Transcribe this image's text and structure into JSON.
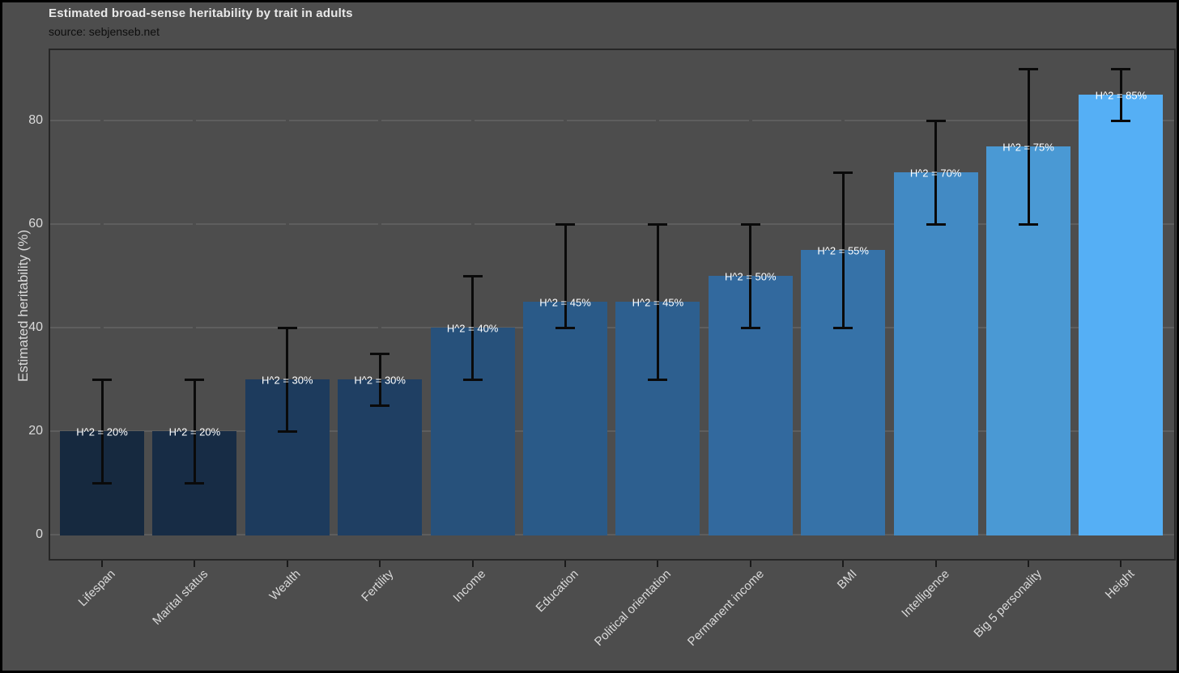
{
  "page": {
    "background_color": "#4d4d4d",
    "border_color": "#000000"
  },
  "header": {
    "title": "Estimated broad-sense heritability by trait in adults",
    "subtitle": "source: sebjenseb.net"
  },
  "chart_data": {
    "type": "bar",
    "title": "Estimated broad-sense heritability by trait in adults",
    "subtitle": "source: sebjenseb.net",
    "xlabel": "",
    "ylabel": "Estimated heritability (%)",
    "ylim": [
      -5,
      95
    ],
    "yticks": [
      0,
      20,
      40,
      60,
      80
    ],
    "grid": "horizontal-major",
    "legend": "none",
    "background": "#4d4d4d",
    "gridline_color": "#5e5e5e",
    "error_bar_color": "#0a0a0a",
    "bar_label_color": "#ffffff",
    "categories": [
      "Lifespan",
      "Marital status",
      "Wealth",
      "Fertility",
      "Income",
      "Education",
      "Political orientation",
      "Permanent income",
      "BMI",
      "Intelligence",
      "Big 5 personality",
      "Height"
    ],
    "values": [
      20,
      20,
      30,
      30,
      40,
      45,
      45,
      50,
      55,
      70,
      75,
      85
    ],
    "error_low": [
      10,
      10,
      20,
      25,
      30,
      40,
      30,
      40,
      40,
      60,
      60,
      80
    ],
    "error_high": [
      30,
      30,
      40,
      35,
      50,
      60,
      60,
      60,
      70,
      80,
      90,
      90
    ],
    "bar_labels": [
      "H^2 = 20%",
      "H^2 = 20%",
      "H^2 = 30%",
      "H^2 = 30%",
      "H^2 = 40%",
      "H^2 = 45%",
      "H^2 = 45%",
      "H^2 = 50%",
      "H^2 = 55%",
      "H^2 = 70%",
      "H^2 = 75%",
      "H^2 = 85%"
    ],
    "bar_colors": [
      "#16293F",
      "#172C45",
      "#1D3B5D",
      "#1F3F63",
      "#27517B",
      "#2A5A88",
      "#2D5F8F",
      "#32699E",
      "#3672A8",
      "#428AC4",
      "#4A99D4",
      "#55AFF5"
    ]
  }
}
